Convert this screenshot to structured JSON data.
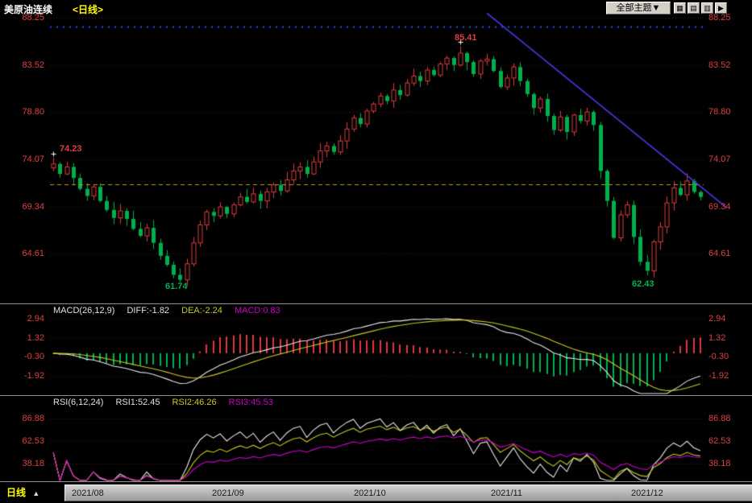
{
  "header": {
    "title": "美原油连续",
    "period_tag": "<日线>",
    "theme_dropdown": "全部主题▼",
    "icon_buttons": [
      {
        "name": "layout-grid-icon",
        "glyph": "▦"
      },
      {
        "name": "layout-rows-icon",
        "glyph": "▤"
      },
      {
        "name": "layout-columns-icon",
        "glyph": "▥"
      },
      {
        "name": "next-page-icon",
        "glyph": "▶"
      }
    ]
  },
  "main_chart": {
    "axis_labels": [
      "88.25",
      "83.52",
      "78.80",
      "74.07",
      "69.34",
      "64.61"
    ],
    "axis_values": [
      88.25,
      83.52,
      78.8,
      74.07,
      69.34,
      64.61
    ],
    "annotations": [
      {
        "text": "74.23"
      },
      {
        "text": "85.41"
      },
      {
        "text": "61.74"
      },
      {
        "text": "62.43"
      }
    ],
    "horizontal_line_price": 71.56,
    "blue_dotted_price": 87.35,
    "trendline": {
      "x1_index": 65,
      "price1": 88.7,
      "x2_index": 101,
      "price2": 69.2
    },
    "cross_markers": [
      {
        "i": 0,
        "price": 74.23
      },
      {
        "i": 61,
        "price": 85.41
      }
    ],
    "colors": {
      "up": "#dd3c3c",
      "down": "#00b04c",
      "grid": "rgba(165,45,45,0.55)",
      "dash_line": "#c99a1e",
      "trend": "#4f35e8",
      "dots": "#2b4bf2",
      "axis_label": "#dd4040"
    }
  },
  "chart_data": {
    "type": "candlestick",
    "title": "美原油连续 日线 (US Crude Oil Continuous, Daily)",
    "x_axis_months": [
      "2021/08",
      "2021/09",
      "2021/10",
      "2021/11",
      "2021/12"
    ],
    "price_range": [
      59.8,
      88.4
    ],
    "key_levels": {
      "first_high": 74.23,
      "low": 61.74,
      "high": 85.41,
      "second_low": 62.43,
      "dashed_line": 71.56
    },
    "first_open": 73.2,
    "closes": [
      73.6,
      72.6,
      73.3,
      72.2,
      71.1,
      70.4,
      71.3,
      69.9,
      69.0,
      68.2,
      68.9,
      68.1,
      67.1,
      66.4,
      67.2,
      65.7,
      64.4,
      63.5,
      62.5,
      62.0,
      63.6,
      65.7,
      67.5,
      68.8,
      68.4,
      69.3,
      68.6,
      69.5,
      70.3,
      69.8,
      70.6,
      69.9,
      70.8,
      71.5,
      70.9,
      72.0,
      72.9,
      73.3,
      72.6,
      73.8,
      74.9,
      75.4,
      74.8,
      75.9,
      77.1,
      78.2,
      77.6,
      78.9,
      79.6,
      80.4,
      79.9,
      81.0,
      80.5,
      81.7,
      82.4,
      81.9,
      83.0,
      82.5,
      83.6,
      84.2,
      83.5,
      84.7,
      83.8,
      82.6,
      83.9,
      84.1,
      82.9,
      81.3,
      82.2,
      83.3,
      81.9,
      80.6,
      79.2,
      80.1,
      78.4,
      77.0,
      78.3,
      76.8,
      78.5,
      77.9,
      78.8,
      77.5,
      72.9,
      69.9,
      66.2,
      68.5,
      69.5,
      66.3,
      63.8,
      62.9,
      65.8,
      67.3,
      69.7,
      71.2,
      70.5,
      71.9,
      70.8,
      70.3
    ],
    "overrides": [
      {
        "i": 0,
        "h": 74.23
      },
      {
        "i": 19,
        "l": 61.74
      },
      {
        "i": 61,
        "h": 85.41
      },
      {
        "i": 89,
        "l": 62.43
      }
    ],
    "macd": {
      "fast": 12,
      "slow": 26,
      "signal": 9,
      "axis": [
        2.94,
        1.32,
        -0.3,
        -1.92
      ]
    },
    "rsi": {
      "periods": [
        6,
        12,
        24
      ],
      "axis": [
        86.88,
        62.53,
        38.18
      ]
    }
  },
  "macd_panel": {
    "label": "MACD(26,12,9)",
    "diff_label": "DIFF:-1.82",
    "dea_label": "DEA:-2.24",
    "macd_label": "MACD:0.83",
    "axis_labels": [
      "2.94",
      "1.32",
      "-0.30",
      "-1.92"
    ]
  },
  "rsi_panel": {
    "label": "RSI(6,12,24)",
    "rsi1_label": "RSI1:52.45",
    "rsi2_label": "RSI2:46.26",
    "rsi3_label": "RSI3:45.53",
    "axis_labels": [
      "86.88",
      "62.53",
      "38.18"
    ]
  },
  "bottom_bar": {
    "period_label": "日线",
    "arrow": "▲"
  }
}
